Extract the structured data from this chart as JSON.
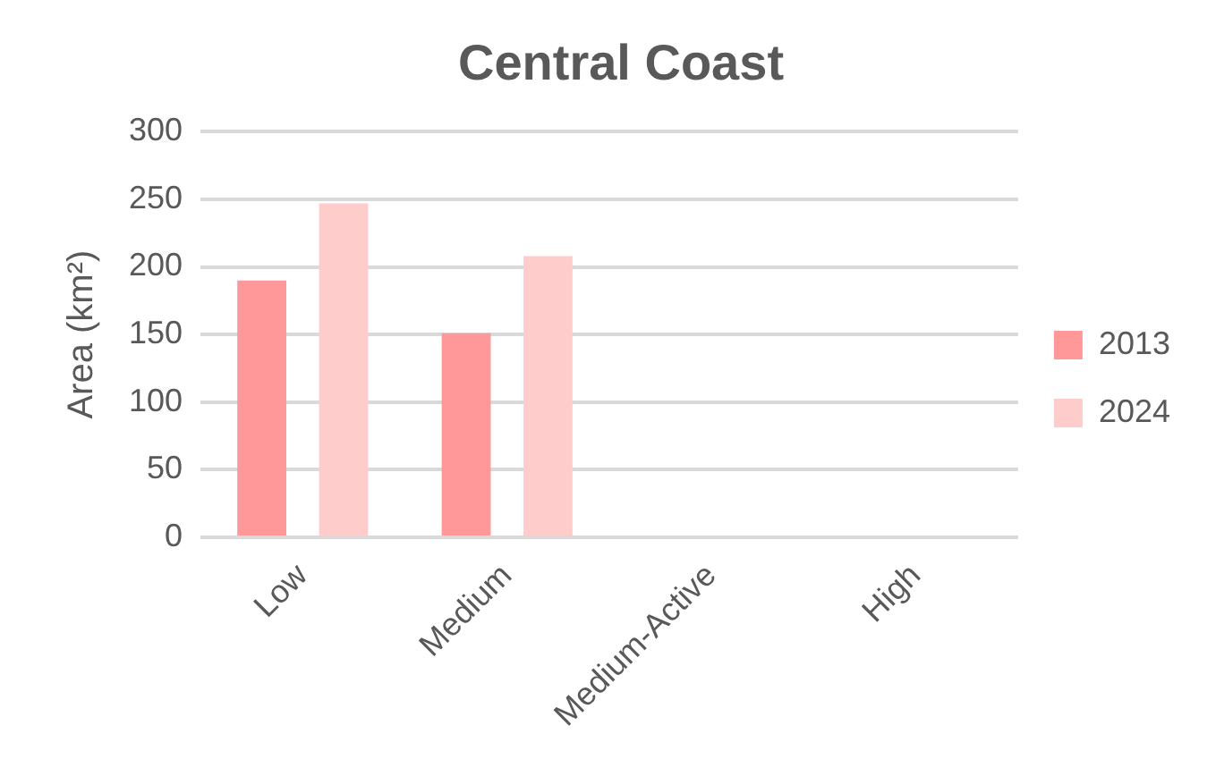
{
  "chart_data": {
    "type": "bar",
    "title": "Central Coast",
    "ylabel": "Area (km²)",
    "categories": [
      "Low",
      "Medium",
      "Medium-Active",
      "High"
    ],
    "series": [
      {
        "name": "2013",
        "color": "#ff9999",
        "values": [
          190,
          151,
          0,
          0
        ]
      },
      {
        "name": "2024",
        "color": "#ffcccc",
        "values": [
          247,
          208,
          0,
          0
        ]
      }
    ],
    "ylim": [
      0,
      300
    ],
    "yticks": [
      0,
      50,
      100,
      150,
      200,
      250,
      300
    ],
    "grid": "y",
    "legend": "right"
  }
}
